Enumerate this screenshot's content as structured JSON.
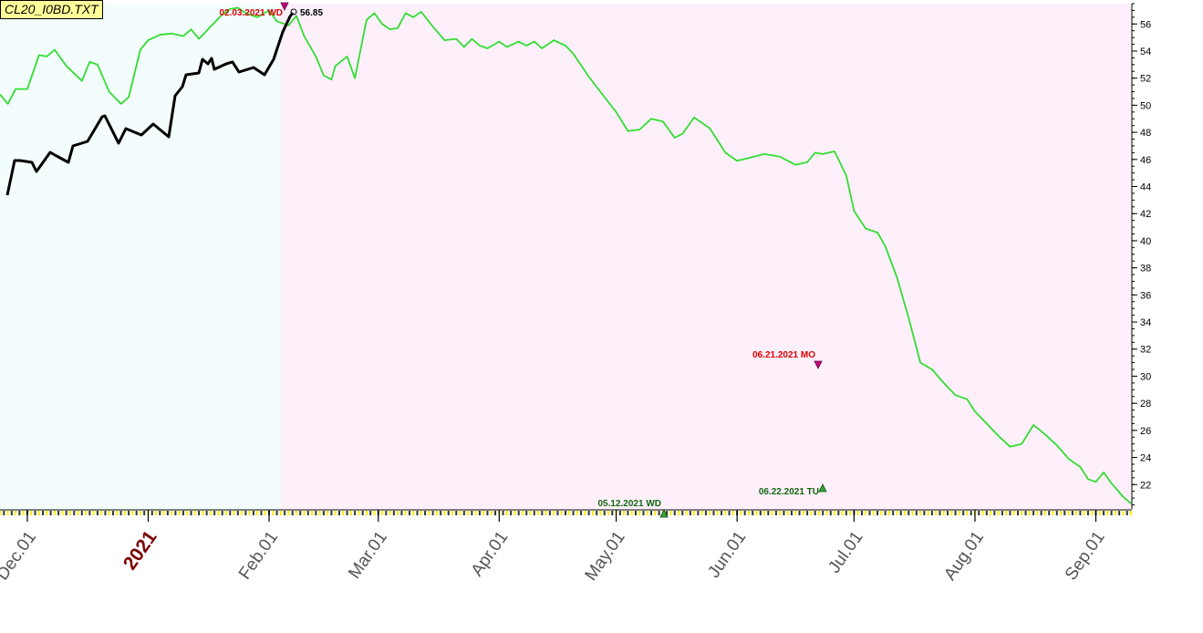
{
  "chart_data": {
    "type": "line",
    "file_label": "CL20_I0BD.TXT",
    "y_ticks": [
      22,
      24,
      26,
      28,
      30,
      32,
      34,
      36,
      38,
      40,
      42,
      44,
      46,
      48,
      50,
      52,
      54,
      56
    ],
    "ylim": [
      20.2,
      57.5
    ],
    "x_ticks": [
      {
        "label": "Dec.01",
        "date": "2020-12-01"
      },
      {
        "label": "2021",
        "date": "2021-01-01",
        "highlight": true
      },
      {
        "label": "Feb.01",
        "date": "2021-02-01"
      },
      {
        "label": "Mar.01",
        "date": "2021-03-01"
      },
      {
        "label": "Apr.01",
        "date": "2021-04-01"
      },
      {
        "label": "May.01",
        "date": "2021-05-01"
      },
      {
        "label": "Jun.01",
        "date": "2021-06-01"
      },
      {
        "label": "Jul.01",
        "date": "2021-07-01"
      },
      {
        "label": "Aug.01",
        "date": "2021-08-01"
      },
      {
        "label": "Sep.01",
        "date": "2021-09-01"
      }
    ],
    "xlim": [
      "2020-11-24",
      "2021-09-10"
    ],
    "shaded_regions": [
      {
        "from": "2020-11-24",
        "to": "2021-02-04",
        "color": "#f3fdfd"
      },
      {
        "from": "2021-02-04",
        "to": "2021-09-10",
        "color": "#fdf0fa"
      }
    ],
    "series": [
      {
        "color": "#33dd33",
        "points": [
          [
            "2020-11-24",
            50.8
          ],
          [
            "2020-11-26",
            50.1
          ],
          [
            "2020-11-28",
            51.2
          ],
          [
            "2020-12-01",
            51.2
          ],
          [
            "2020-12-04",
            53.7
          ],
          [
            "2020-12-06",
            53.6
          ],
          [
            "2020-12-08",
            54.1
          ],
          [
            "2020-12-11",
            52.9
          ],
          [
            "2020-12-15",
            51.8
          ],
          [
            "2020-12-17",
            53.2
          ],
          [
            "2020-12-19",
            53.0
          ],
          [
            "2020-12-22",
            51.0
          ],
          [
            "2020-12-25",
            50.1
          ],
          [
            "2020-12-27",
            50.6
          ],
          [
            "2020-12-30",
            54.1
          ],
          [
            "2021-01-01",
            54.8
          ],
          [
            "2021-01-04",
            55.2
          ],
          [
            "2021-01-07",
            55.3
          ],
          [
            "2021-01-10",
            55.1
          ],
          [
            "2021-01-12",
            55.6
          ],
          [
            "2021-01-14",
            54.9
          ],
          [
            "2021-01-17",
            55.8
          ],
          [
            "2021-01-20",
            56.7
          ],
          [
            "2021-01-22",
            57.1
          ],
          [
            "2021-01-24",
            57.2
          ],
          [
            "2021-01-26",
            56.8
          ],
          [
            "2021-01-29",
            56.5
          ],
          [
            "2021-02-01",
            57.0
          ],
          [
            "2021-02-03",
            56.2
          ],
          [
            "2021-02-06",
            55.9
          ],
          [
            "2021-02-08",
            56.6
          ],
          [
            "2021-02-10",
            55.1
          ],
          [
            "2021-02-13",
            53.6
          ],
          [
            "2021-02-15",
            52.2
          ],
          [
            "2021-02-17",
            51.9
          ],
          [
            "2021-02-18",
            52.9
          ],
          [
            "2021-02-21",
            53.6
          ],
          [
            "2021-02-23",
            52.0
          ],
          [
            "2021-02-26",
            56.3
          ],
          [
            "2021-02-28",
            56.8
          ],
          [
            "2021-03-02",
            56.0
          ],
          [
            "2021-03-04",
            55.6
          ],
          [
            "2021-03-06",
            55.7
          ],
          [
            "2021-03-08",
            56.8
          ],
          [
            "2021-03-10",
            56.5
          ],
          [
            "2021-03-12",
            56.9
          ],
          [
            "2021-03-15",
            55.8
          ],
          [
            "2021-03-18",
            54.8
          ],
          [
            "2021-03-21",
            54.9
          ],
          [
            "2021-03-23",
            54.3
          ],
          [
            "2021-03-25",
            54.9
          ],
          [
            "2021-03-27",
            54.4
          ],
          [
            "2021-03-29",
            54.2
          ],
          [
            "2021-04-01",
            54.7
          ],
          [
            "2021-04-03",
            54.3
          ],
          [
            "2021-04-06",
            54.7
          ],
          [
            "2021-04-08",
            54.4
          ],
          [
            "2021-04-10",
            54.7
          ],
          [
            "2021-04-12",
            54.2
          ],
          [
            "2021-04-15",
            54.8
          ],
          [
            "2021-04-18",
            54.4
          ],
          [
            "2021-04-20",
            53.8
          ],
          [
            "2021-04-24",
            52.1
          ],
          [
            "2021-04-28",
            50.6
          ],
          [
            "2021-05-01",
            49.5
          ],
          [
            "2021-05-04",
            48.1
          ],
          [
            "2021-05-07",
            48.2
          ],
          [
            "2021-05-10",
            49.0
          ],
          [
            "2021-05-13",
            48.8
          ],
          [
            "2021-05-16",
            47.6
          ],
          [
            "2021-05-18",
            47.9
          ],
          [
            "2021-05-21",
            49.1
          ],
          [
            "2021-05-25",
            48.3
          ],
          [
            "2021-05-29",
            46.5
          ],
          [
            "2021-06-01",
            45.9
          ],
          [
            "2021-06-04",
            46.1
          ],
          [
            "2021-06-08",
            46.4
          ],
          [
            "2021-06-12",
            46.2
          ],
          [
            "2021-06-16",
            45.6
          ],
          [
            "2021-06-19",
            45.8
          ],
          [
            "2021-06-21",
            46.5
          ],
          [
            "2021-06-23",
            46.4
          ],
          [
            "2021-06-26",
            46.6
          ],
          [
            "2021-06-29",
            44.8
          ],
          [
            "2021-07-01",
            42.2
          ],
          [
            "2021-07-04",
            40.9
          ],
          [
            "2021-07-07",
            40.6
          ],
          [
            "2021-07-09",
            39.6
          ],
          [
            "2021-07-12",
            37.3
          ],
          [
            "2021-07-15",
            34.3
          ],
          [
            "2021-07-18",
            31.0
          ],
          [
            "2021-07-21",
            30.5
          ],
          [
            "2021-07-24",
            29.5
          ],
          [
            "2021-07-27",
            28.6
          ],
          [
            "2021-07-30",
            28.3
          ],
          [
            "2021-08-01",
            27.4
          ],
          [
            "2021-08-04",
            26.5
          ],
          [
            "2021-08-07",
            25.6
          ],
          [
            "2021-08-10",
            24.8
          ],
          [
            "2021-08-13",
            25.0
          ],
          [
            "2021-08-16",
            26.4
          ],
          [
            "2021-08-19",
            25.7
          ],
          [
            "2021-08-22",
            24.9
          ],
          [
            "2021-08-25",
            23.9
          ],
          [
            "2021-08-28",
            23.3
          ],
          [
            "2021-08-30",
            22.4
          ],
          [
            "2021-09-01",
            22.2
          ],
          [
            "2021-09-03",
            22.9
          ],
          [
            "2021-09-05",
            22.1
          ],
          [
            "2021-09-08",
            21.1
          ],
          [
            "2021-09-10",
            20.6
          ]
        ]
      }
    ],
    "annotations": [
      {
        "text": "02.03.2021 WD",
        "color": "#dd0000"
      },
      {
        "text": "56.85",
        "color": "#000000"
      },
      {
        "text": "05.12.2021 WD",
        "color": "#116611"
      },
      {
        "text": "06.21.2021 MO",
        "color": "#dd0000"
      },
      {
        "text": "06.22.2021 TU",
        "color": "#116611"
      }
    ],
    "grid": false,
    "legend": "none"
  }
}
